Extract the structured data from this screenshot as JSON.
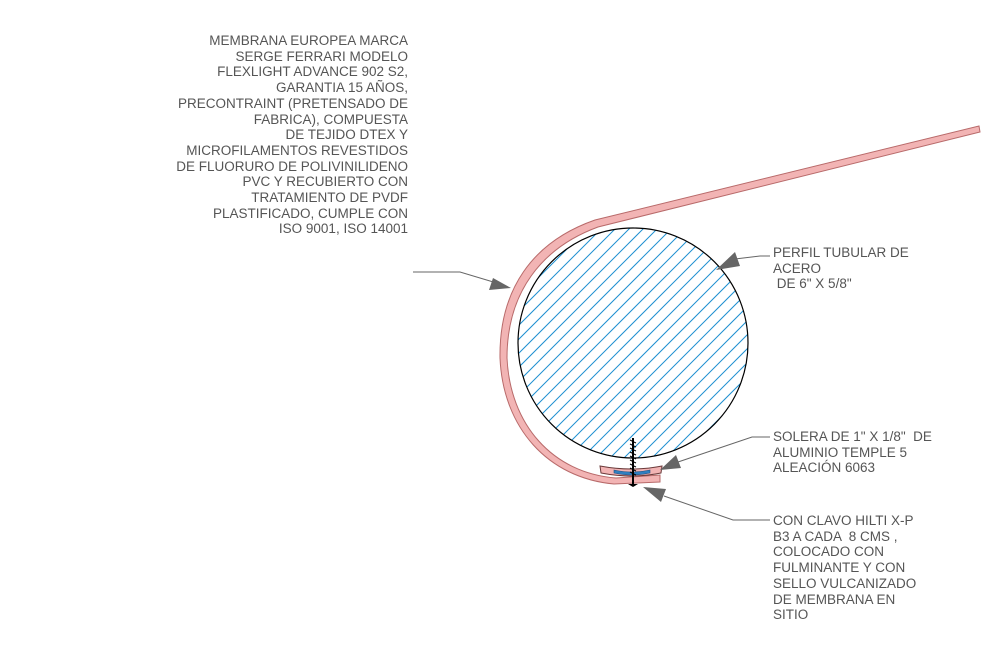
{
  "drawing": {
    "colors": {
      "line": "#000000",
      "hatch": "#1e8fd0",
      "membrane_fill": "#f2b4b4",
      "membrane_edge": "#b86a6a",
      "leader": "#666666",
      "text": "#555555"
    }
  },
  "notes": {
    "membrane": {
      "lines": [
        "MEMBRANA EUROPEA MARCA",
        "SERGE FERRARI MODELO",
        "FLEXLIGHT ADVANCE 902 S2,",
        "GARANTIA 15 AÑOS,",
        "PRECONTRAINT (PRETENSADO DE",
        "FABRICA), COMPUESTA",
        "DE TEJIDO DTEX Y",
        "MICROFILAMENTOS REVESTIDOS",
        "DE FLUORURO DE POLIVINILIDENO",
        "PVC Y RECUBIERTO CON",
        "TRATAMIENTO DE PVDF",
        "PLASTIFICADO, CUMPLE CON",
        "ISO 9001, ISO 14001"
      ]
    },
    "tube": {
      "lines": [
        "PERFIL TUBULAR DE",
        "ACERO",
        " DE 6\" X 5/8\""
      ]
    },
    "strip": {
      "lines": [
        "SOLERA DE 1\" X 1/8\"  DE",
        "ALUMINIO TEMPLE 5",
        "ALEACIÓN 6063"
      ]
    },
    "nail": {
      "lines": [
        "CON CLAVO HILTI X-P",
        "B3 A CADA  8 CMS ,",
        "COLOCADO CON",
        "FULMINANTE Y CON",
        "SELLO VULCANIZADO",
        "DE MEMBRANA EN",
        "SITIO"
      ]
    }
  }
}
